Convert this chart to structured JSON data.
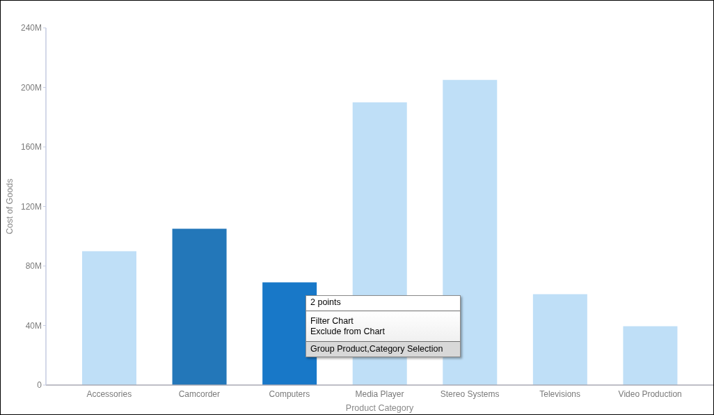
{
  "chart_data": {
    "type": "bar",
    "xlabel": "Product Category",
    "ylabel": "Cost of Goods",
    "categories": [
      "Accessories",
      "Camcorder",
      "Computers",
      "Media Player",
      "Stereo Systems",
      "Televisions",
      "Video Production"
    ],
    "values": [
      90,
      105,
      69,
      190,
      205,
      61,
      39.5
    ],
    "colors": [
      "#bfdff7",
      "#2377b9",
      "#1878c8",
      "#bfdff7",
      "#bfdff7",
      "#bfdff7",
      "#bfdff7"
    ],
    "ylim": [
      0,
      240
    ],
    "yticks": [
      0,
      {
        "value": 40,
        "label": "40M"
      },
      {
        "value": 80,
        "label": "80M"
      },
      {
        "value": 120,
        "label": "120M"
      },
      {
        "value": 160,
        "label": "160M"
      },
      {
        "value": 200,
        "label": "200M"
      },
      {
        "value": 240,
        "label": "240M"
      }
    ],
    "annotations": [
      "2 points",
      "Filter Chart",
      "Exclude from Chart",
      "Group Product,Category Selection"
    ]
  }
}
